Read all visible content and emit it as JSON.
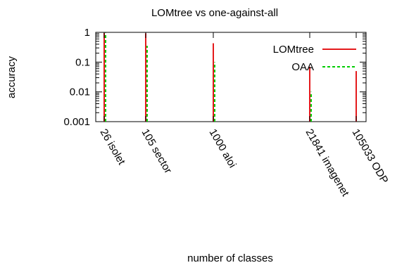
{
  "chart_data": {
    "type": "bar",
    "title": "LOMtree vs one-against-all",
    "xlabel": "number of classes",
    "ylabel": "accuracy",
    "yscale": "log",
    "ylim": [
      0.001,
      1
    ],
    "y_ticks": [
      {
        "value": 0.001,
        "label": "0.001"
      },
      {
        "value": 0.01,
        "label": "0.01"
      },
      {
        "value": 0.1,
        "label": "0.1"
      },
      {
        "value": 1,
        "label": "1"
      }
    ],
    "categories": [
      "26 isolet",
      "105 sector",
      "1000 aloi",
      "21841 imagenet",
      "105033 ODP"
    ],
    "series": [
      {
        "name": "LOMtree",
        "color": "#e41a1c",
        "dash": "solid",
        "values": [
          0.95,
          0.93,
          0.43,
          0.07,
          0.05
        ]
      },
      {
        "name": "OAA",
        "color": "#00cc00",
        "dash": "dashed",
        "values": [
          0.96,
          0.35,
          0.1,
          0.01,
          0.001
        ]
      }
    ],
    "legend_position": "top-right",
    "grid": false
  }
}
